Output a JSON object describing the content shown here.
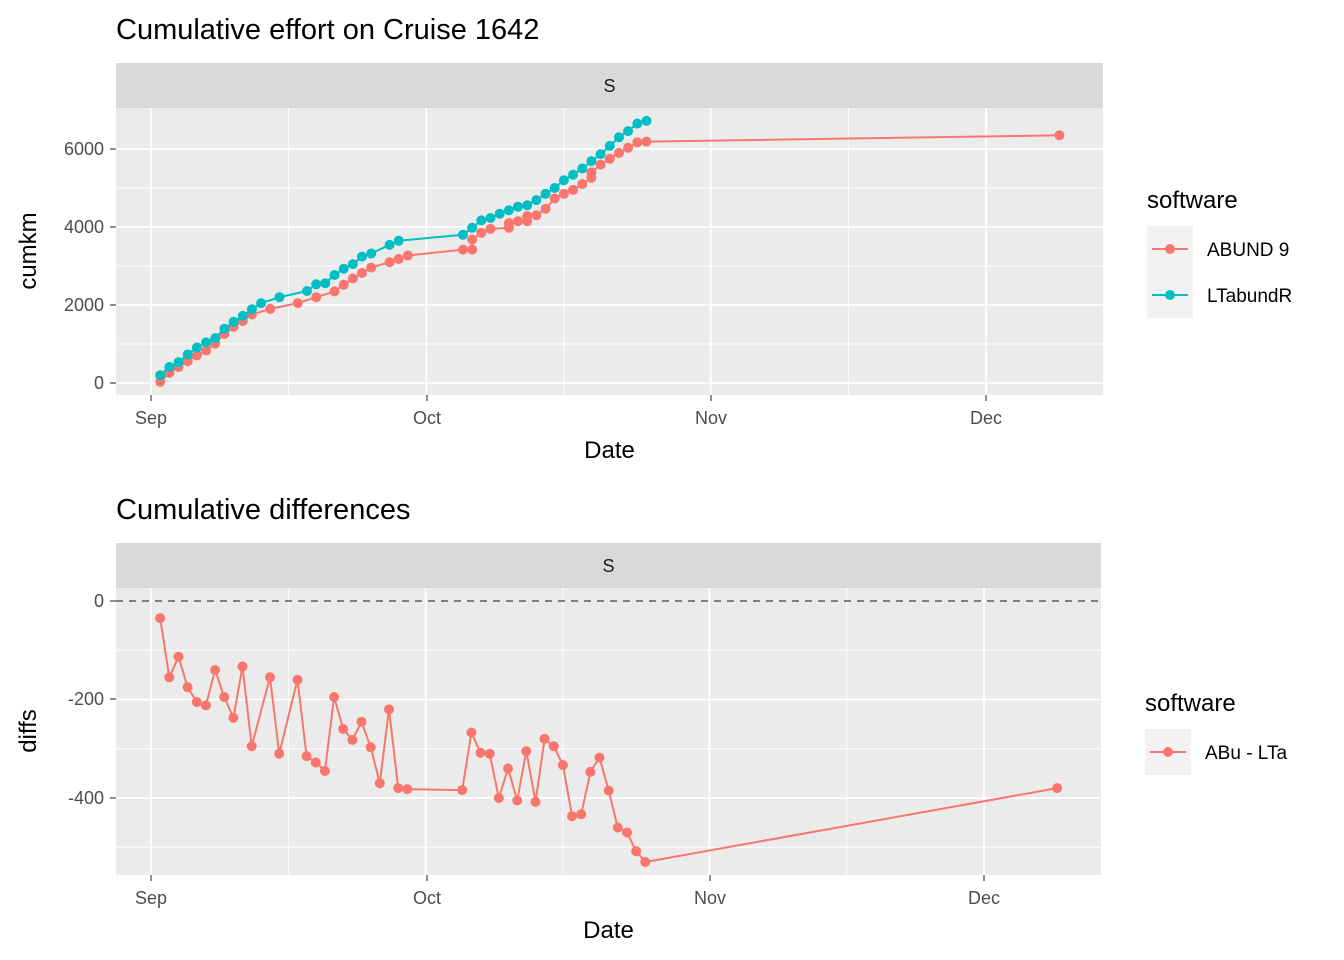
{
  "chart_data": [
    {
      "type": "line",
      "title": "Cumulative effort on Cruise 1642",
      "facet": "S",
      "xlabel": "Date",
      "ylabel": "cumkm",
      "x_ticks": [
        "Sep",
        "Oct",
        "Nov",
        "Dec"
      ],
      "y_ticks": [
        "0",
        "2000",
        "4000",
        "6000"
      ],
      "xlim": [
        "2023-08-29",
        "2023-12-12"
      ],
      "ylim": [
        -300,
        7000
      ],
      "grid": true,
      "legend": {
        "title": "software",
        "position": "right"
      },
      "series": [
        {
          "name": "ABUND 9",
          "color": "#F8766D",
          "points": [
            [
              "2023-09-02",
              30
            ],
            [
              "2023-09-03",
              260
            ],
            [
              "2023-09-04",
              410
            ],
            [
              "2023-09-05",
              560
            ],
            [
              "2023-09-06",
              710
            ],
            [
              "2023-09-07",
              830
            ],
            [
              "2023-09-08",
              1010
            ],
            [
              "2023-09-09",
              1260
            ],
            [
              "2023-09-10",
              1440
            ],
            [
              "2023-09-11",
              1590
            ],
            [
              "2023-09-12",
              1760
            ],
            [
              "2023-09-14",
              1900
            ],
            [
              "2023-09-17",
              2050
            ],
            [
              "2023-09-19",
              2200
            ],
            [
              "2023-09-21",
              2350
            ],
            [
              "2023-09-22",
              2520
            ],
            [
              "2023-09-23",
              2680
            ],
            [
              "2023-09-24",
              2820
            ],
            [
              "2023-09-25",
              2960
            ],
            [
              "2023-09-27",
              3100
            ],
            [
              "2023-09-28",
              3180
            ],
            [
              "2023-09-29",
              3270
            ],
            [
              "2023-10-05",
              3420
            ],
            [
              "2023-10-06",
              3420
            ],
            [
              "2023-10-06",
              3680
            ],
            [
              "2023-10-07",
              3850
            ],
            [
              "2023-10-08",
              3950
            ],
            [
              "2023-10-10",
              3980
            ],
            [
              "2023-10-10",
              4100
            ],
            [
              "2023-10-11",
              4150
            ],
            [
              "2023-10-12",
              4150
            ],
            [
              "2023-10-12",
              4280
            ],
            [
              "2023-10-13",
              4300
            ],
            [
              "2023-10-14",
              4470
            ],
            [
              "2023-10-15",
              4730
            ],
            [
              "2023-10-16",
              4850
            ],
            [
              "2023-10-17",
              4950
            ],
            [
              "2023-10-18",
              5100
            ],
            [
              "2023-10-19",
              5260
            ],
            [
              "2023-10-19",
              5400
            ],
            [
              "2023-10-20",
              5600
            ],
            [
              "2023-10-21",
              5750
            ],
            [
              "2023-10-22",
              5900
            ],
            [
              "2023-10-23",
              6030
            ],
            [
              "2023-10-24",
              6170
            ],
            [
              "2023-10-25",
              6190
            ],
            [
              "2023-12-09",
              6350
            ]
          ]
        },
        {
          "name": "LTabundR",
          "color": "#00BFC4",
          "points": [
            [
              "2023-09-02",
              200
            ],
            [
              "2023-09-03",
              410
            ],
            [
              "2023-09-04",
              530
            ],
            [
              "2023-09-05",
              730
            ],
            [
              "2023-09-06",
              910
            ],
            [
              "2023-09-07",
              1040
            ],
            [
              "2023-09-08",
              1150
            ],
            [
              "2023-09-09",
              1390
            ],
            [
              "2023-09-10",
              1570
            ],
            [
              "2023-09-11",
              1720
            ],
            [
              "2023-09-12",
              1890
            ],
            [
              "2023-09-13",
              2050
            ],
            [
              "2023-09-15",
              2200
            ],
            [
              "2023-09-18",
              2360
            ],
            [
              "2023-09-19",
              2530
            ],
            [
              "2023-09-20",
              2560
            ],
            [
              "2023-09-21",
              2770
            ],
            [
              "2023-09-22",
              2930
            ],
            [
              "2023-09-23",
              3050
            ],
            [
              "2023-09-24",
              3240
            ],
            [
              "2023-09-25",
              3320
            ],
            [
              "2023-09-27",
              3540
            ],
            [
              "2023-09-28",
              3650
            ],
            [
              "2023-10-05",
              3800
            ],
            [
              "2023-10-06",
              3980
            ],
            [
              "2023-10-07",
              4170
            ],
            [
              "2023-10-08",
              4230
            ],
            [
              "2023-10-09",
              4340
            ],
            [
              "2023-10-10",
              4430
            ],
            [
              "2023-10-11",
              4520
            ],
            [
              "2023-10-12",
              4560
            ],
            [
              "2023-10-13",
              4690
            ],
            [
              "2023-10-14",
              4850
            ],
            [
              "2023-10-15",
              5000
            ],
            [
              "2023-10-16",
              5200
            ],
            [
              "2023-10-17",
              5340
            ],
            [
              "2023-10-18",
              5500
            ],
            [
              "2023-10-19",
              5690
            ],
            [
              "2023-10-20",
              5870
            ],
            [
              "2023-10-21",
              6080
            ],
            [
              "2023-10-22",
              6300
            ],
            [
              "2023-10-23",
              6460
            ],
            [
              "2023-10-24",
              6650
            ],
            [
              "2023-10-25",
              6720
            ]
          ]
        }
      ]
    },
    {
      "type": "line",
      "title": "Cumulative differences",
      "facet": "S",
      "xlabel": "Date",
      "ylabel": "diffs",
      "x_ticks": [
        "Sep",
        "Oct",
        "Nov",
        "Dec"
      ],
      "y_ticks": [
        "0",
        "-200",
        "-400"
      ],
      "xlim": [
        "2023-08-29",
        "2023-12-12"
      ],
      "ylim": [
        -560,
        0
      ],
      "grid": true,
      "reference_line": 0,
      "legend": {
        "title": "software",
        "position": "right"
      },
      "series": [
        {
          "name": "ABu - LTa",
          "color": "#F8766D",
          "points": [
            [
              "2023-09-02",
              -35
            ],
            [
              "2023-09-03",
              -155
            ],
            [
              "2023-09-04",
              -113
            ],
            [
              "2023-09-05",
              -175
            ],
            [
              "2023-09-06",
              -205
            ],
            [
              "2023-09-07",
              -212
            ],
            [
              "2023-09-08",
              -140
            ],
            [
              "2023-09-09",
              -195
            ],
            [
              "2023-09-10",
              -237
            ],
            [
              "2023-09-11",
              -133
            ],
            [
              "2023-09-12",
              -295
            ],
            [
              "2023-09-14",
              -155
            ],
            [
              "2023-09-15",
              -310
            ],
            [
              "2023-09-17",
              -160
            ],
            [
              "2023-09-18",
              -315
            ],
            [
              "2023-09-19",
              -328
            ],
            [
              "2023-09-20",
              -345
            ],
            [
              "2023-09-21",
              -195
            ],
            [
              "2023-09-22",
              -260
            ],
            [
              "2023-09-23",
              -282
            ],
            [
              "2023-09-24",
              -245
            ],
            [
              "2023-09-25",
              -297
            ],
            [
              "2023-09-26",
              -370
            ],
            [
              "2023-09-27",
              -220
            ],
            [
              "2023-09-28",
              -380
            ],
            [
              "2023-09-29",
              -382
            ],
            [
              "2023-10-05",
              -384
            ],
            [
              "2023-10-06",
              -267
            ],
            [
              "2023-10-07",
              -308
            ],
            [
              "2023-10-08",
              -310
            ],
            [
              "2023-10-09",
              -400
            ],
            [
              "2023-10-10",
              -340
            ],
            [
              "2023-10-11",
              -405
            ],
            [
              "2023-10-12",
              -305
            ],
            [
              "2023-10-13",
              -408
            ],
            [
              "2023-10-14",
              -280
            ],
            [
              "2023-10-15",
              -295
            ],
            [
              "2023-10-16",
              -333
            ],
            [
              "2023-10-17",
              -437
            ],
            [
              "2023-10-18",
              -433
            ],
            [
              "2023-10-19",
              -347
            ],
            [
              "2023-10-20",
              -318
            ],
            [
              "2023-10-21",
              -385
            ],
            [
              "2023-10-22",
              -460
            ],
            [
              "2023-10-23",
              -470
            ],
            [
              "2023-10-24",
              -508
            ],
            [
              "2023-10-25",
              -530
            ],
            [
              "2023-12-09",
              -380
            ]
          ]
        }
      ]
    }
  ]
}
